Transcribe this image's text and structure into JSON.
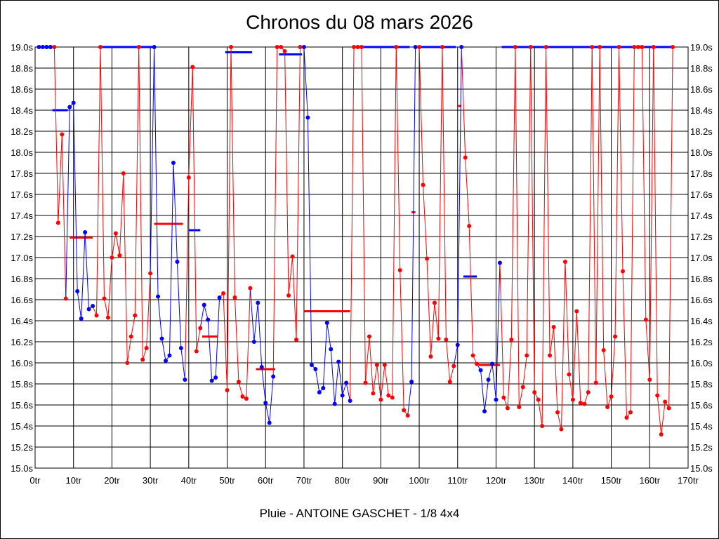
{
  "chart_data": {
    "type": "line",
    "title": "Chronos du 08 mars 2026",
    "subtitle": "Pluie - ANTOINE GASCHET - 1/8 4x4",
    "xlim": [
      0,
      170
    ],
    "ylim": [
      15.0,
      19.0
    ],
    "x_ticks": [
      0,
      10,
      20,
      30,
      40,
      50,
      60,
      70,
      80,
      90,
      100,
      110,
      120,
      130,
      140,
      150,
      160,
      170
    ],
    "x_tick_labels": [
      "0tr",
      "10tr",
      "20tr",
      "30tr",
      "40tr",
      "50tr",
      "60tr",
      "70tr",
      "80tr",
      "90tr",
      "100tr",
      "110tr",
      "120tr",
      "130tr",
      "140tr",
      "150tr",
      "160tr",
      "170tr"
    ],
    "y_ticks": [
      15.0,
      15.2,
      15.4,
      15.6,
      15.8,
      16.0,
      16.2,
      16.4,
      16.6,
      16.8,
      17.0,
      17.2,
      17.4,
      17.6,
      17.8,
      18.0,
      18.2,
      18.4,
      18.6,
      18.8,
      19.0
    ],
    "y_tick_labels": [
      "15.0s",
      "15.2s",
      "15.4s",
      "15.6s",
      "15.8s",
      "16.0s",
      "16.2s",
      "16.4s",
      "16.6s",
      "16.8s",
      "17.0s",
      "17.2s",
      "17.4s",
      "17.6s",
      "17.8s",
      "18.0s",
      "18.2s",
      "18.4s",
      "18.6s",
      "18.8s",
      "19.0s"
    ],
    "grid": true,
    "colors": {
      "red": "#ff0000",
      "blue": "#0000ff"
    },
    "series": [
      {
        "color": "#ff0000",
        "x": [
          3,
          4,
          5,
          6,
          7,
          8
        ],
        "y": [
          19.0,
          19.0,
          19.0,
          17.33,
          18.17,
          16.61
        ]
      },
      {
        "color": "#0000ff",
        "x": [
          1,
          2,
          3,
          4,
          9,
          10,
          11,
          12,
          13,
          14,
          15
        ],
        "y": [
          19.0,
          19.0,
          19.0,
          19.0,
          18.43,
          18.47,
          16.68,
          16.42,
          17.24,
          16.51,
          16.54
        ]
      },
      {
        "color": "#ff0000",
        "x": [
          16,
          17,
          18,
          19,
          20,
          21,
          22,
          23,
          24,
          25,
          26,
          27,
          28,
          29,
          30
        ],
        "y": [
          16.45,
          19.0,
          16.61,
          16.43,
          17.0,
          17.23,
          17.02,
          17.8,
          16.0,
          16.25,
          16.45,
          19.0,
          16.03,
          16.14,
          16.85
        ]
      },
      {
        "color": "#0000ff",
        "x": [
          31,
          32,
          33,
          34,
          35,
          36,
          37,
          38,
          39
        ],
        "y": [
          19.0,
          16.63,
          16.23,
          16.02,
          16.07,
          17.9,
          16.96,
          16.14,
          15.84
        ]
      },
      {
        "color": "#ff0000",
        "x": [
          40,
          41,
          42,
          43
        ],
        "y": [
          17.76,
          18.81,
          16.11,
          16.33
        ]
      },
      {
        "color": "#0000ff",
        "x": [
          44,
          45,
          46,
          47,
          48
        ],
        "y": [
          16.55,
          16.41,
          15.83,
          15.86,
          16.62
        ]
      },
      {
        "color": "#ff0000",
        "x": [
          49,
          50,
          51,
          52,
          53,
          54,
          55,
          56
        ],
        "y": [
          16.66,
          15.74,
          19.0,
          16.62,
          15.82,
          15.68,
          15.66,
          16.71
        ]
      },
      {
        "color": "#0000ff",
        "x": [
          57,
          58,
          59,
          60,
          61,
          62
        ],
        "y": [
          16.2,
          16.57,
          15.96,
          15.62,
          15.43,
          15.87
        ]
      },
      {
        "color": "#ff0000",
        "x": [
          63,
          64,
          65,
          66,
          67,
          68,
          69
        ],
        "y": [
          19.0,
          19.0,
          18.96,
          16.64,
          17.01,
          16.22,
          19.0
        ]
      },
      {
        "color": "#0000ff",
        "x": [
          70,
          71,
          72,
          73,
          74,
          75,
          76,
          77,
          78,
          79,
          80,
          81,
          82
        ],
        "y": [
          19.0,
          18.33,
          15.98,
          15.94,
          15.72,
          15.76,
          16.38,
          16.13,
          15.61,
          16.01,
          15.69,
          15.81,
          15.64
        ]
      },
      {
        "color": "#ff0000",
        "x": [
          83,
          84,
          85,
          86,
          87,
          88,
          89,
          90,
          91,
          92,
          93,
          94,
          95,
          96,
          97
        ],
        "y": [
          19.0,
          19.0,
          19.0,
          15.81,
          16.25,
          15.71,
          15.98,
          15.65,
          15.98,
          15.69,
          15.67,
          19.0,
          16.88,
          15.55,
          15.5
        ]
      },
      {
        "color": "#0000ff",
        "x": [
          98,
          99
        ],
        "y": [
          15.82,
          19.0
        ]
      },
      {
        "color": "#ff0000",
        "x": [
          100,
          101,
          102,
          103,
          104,
          105,
          106,
          107,
          108,
          109
        ],
        "y": [
          19.0,
          17.69,
          16.99,
          16.06,
          16.57,
          16.23,
          19.0,
          16.22,
          15.82,
          15.97
        ]
      },
      {
        "color": "#0000ff",
        "x": [
          110,
          111
        ],
        "y": [
          16.17,
          19.0
        ]
      },
      {
        "color": "#ff0000",
        "x": [
          112,
          113,
          114,
          115
        ],
        "y": [
          17.95,
          17.3,
          16.07,
          15.99
        ]
      },
      {
        "color": "#0000ff",
        "x": [
          116,
          117,
          118,
          119,
          120,
          121
        ],
        "y": [
          15.93,
          15.54,
          15.84,
          15.99,
          15.65,
          16.95
        ]
      },
      {
        "color": "#ff0000",
        "x": [
          122,
          123,
          124,
          125,
          126,
          127,
          128,
          129,
          130,
          131,
          132,
          133,
          134,
          135,
          136,
          137,
          138,
          139,
          140,
          141,
          142,
          143,
          144,
          145,
          146,
          147,
          148,
          149,
          150,
          151,
          152,
          153,
          154,
          155,
          156,
          157,
          158,
          159,
          160,
          161,
          162,
          163,
          164,
          165,
          166
        ],
        "y": [
          15.67,
          15.57,
          16.22,
          19.0,
          15.58,
          15.77,
          16.07,
          19.0,
          15.72,
          15.65,
          15.4,
          19.0,
          16.07,
          16.34,
          15.53,
          15.37,
          16.96,
          15.89,
          15.65,
          16.49,
          15.62,
          15.61,
          15.72,
          19.0,
          15.81,
          19.0,
          16.12,
          15.58,
          15.68,
          16.25,
          19.0,
          16.87,
          15.48,
          15.53,
          19.0,
          19.0,
          19.0,
          16.41,
          15.84,
          19.0,
          15.69,
          15.32,
          15.63,
          15.57,
          19.0
        ]
      }
    ],
    "segments": [
      {
        "color": "#0000ff",
        "x": [
          4.5,
          8.5
        ],
        "y": 18.4
      },
      {
        "color": "#ff0000",
        "x": [
          9,
          15
        ],
        "y": 17.19
      },
      {
        "color": "#0000ff",
        "x": [
          16.5,
          30.5
        ],
        "y": 19.0
      },
      {
        "color": "#ff0000",
        "x": [
          31,
          38.5
        ],
        "y": 17.32
      },
      {
        "color": "#0000ff",
        "x": [
          40,
          43
        ],
        "y": 17.26
      },
      {
        "color": "#ff0000",
        "x": [
          43.5,
          47.5
        ],
        "y": 16.25
      },
      {
        "color": "#0000ff",
        "x": [
          49.5,
          56.5
        ],
        "y": 18.95
      },
      {
        "color": "#ff0000",
        "x": [
          57.5,
          62.5
        ],
        "y": 15.94
      },
      {
        "color": "#0000ff",
        "x": [
          63.5,
          69.5
        ],
        "y": 18.93
      },
      {
        "color": "#ff0000",
        "x": [
          70,
          82
        ],
        "y": 16.49
      },
      {
        "color": "#0000ff",
        "x": [
          83.5,
          97.5
        ],
        "y": 19.0
      },
      {
        "color": "#ff0000",
        "x": [
          98,
          99
        ],
        "y": 17.43
      },
      {
        "color": "#0000ff",
        "x": [
          99.5,
          109.5
        ],
        "y": 19.0
      },
      {
        "color": "#ff0000",
        "x": [
          110,
          111
        ],
        "y": 18.44
      },
      {
        "color": "#0000ff",
        "x": [
          111.5,
          115
        ],
        "y": 16.82
      },
      {
        "color": "#ff0000",
        "x": [
          115.5,
          121
        ],
        "y": 15.98
      },
      {
        "color": "#0000ff",
        "x": [
          121.5,
          166
        ],
        "y": 19.0
      }
    ]
  }
}
